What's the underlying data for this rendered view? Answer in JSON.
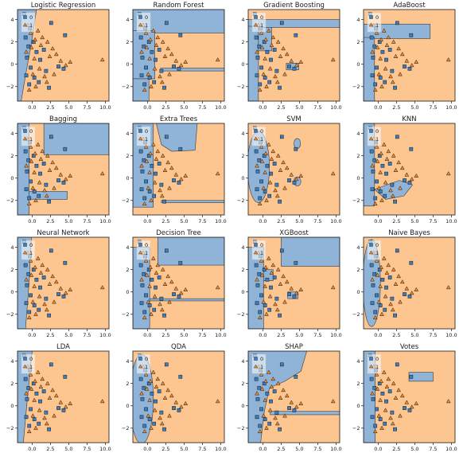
{
  "figure": {
    "colors": {
      "class_0": "#8fb4d8",
      "class_1": "#fdc590",
      "marker_0": "#3a7ebf",
      "marker_1": "#f28a2a"
    }
  },
  "chart_data": {
    "type": "scatter",
    "xlim": [
      -2,
      10.5
    ],
    "ylim": [
      -3.3,
      4.9
    ],
    "xticks": [
      0.0,
      2.5,
      5.0,
      7.5,
      10.0
    ],
    "xtick_labels": [
      "0.0",
      "2.5",
      "5.0",
      "7.5",
      "10.0"
    ],
    "yticks": [
      -2,
      0,
      2,
      4
    ],
    "ytick_labels": [
      "−2",
      "0",
      "2",
      "4"
    ],
    "legend": {
      "entries": [
        "0",
        "1"
      ],
      "placement": "top-left"
    },
    "series": [
      {
        "name": "0",
        "marker": "square",
        "points": [
          [
            -0.9,
            2.4
          ],
          [
            -0.5,
            1.6
          ],
          [
            -0.7,
            0.6
          ],
          [
            -0.2,
            -0.3
          ],
          [
            0.3,
            -1.2
          ],
          [
            -0.4,
            -1.8
          ],
          [
            1.1,
            0.4
          ],
          [
            1.9,
            -0.6
          ],
          [
            2.3,
            -2.1
          ],
          [
            3.6,
            -0.2
          ],
          [
            4.3,
            -0.4
          ],
          [
            4.5,
            2.6
          ],
          [
            2.6,
            3.7
          ],
          [
            -1.1,
            4.5
          ],
          [
            0.6,
            1.1
          ],
          [
            -0.8,
            -1.0
          ],
          [
            0.9,
            -1.6
          ],
          [
            1.6,
            1.3
          ],
          [
            -0.3,
            3.2
          ],
          [
            0.2,
            2.0
          ]
        ]
      },
      {
        "name": "1",
        "marker": "triangle",
        "points": [
          [
            -0.6,
            3.5
          ],
          [
            -0.2,
            2.8
          ],
          [
            0.4,
            2.2
          ],
          [
            0.8,
            3.0
          ],
          [
            1.4,
            2.4
          ],
          [
            2.1,
            2.0
          ],
          [
            2.8,
            1.4
          ],
          [
            3.3,
            0.9
          ],
          [
            3.9,
            0.3
          ],
          [
            4.6,
            -0.1
          ],
          [
            5.2,
            0.2
          ],
          [
            9.6,
            0.4
          ],
          [
            1.0,
            -0.4
          ],
          [
            0.1,
            -0.9
          ],
          [
            -0.4,
            -2.3
          ],
          [
            0.5,
            -2.0
          ],
          [
            1.7,
            -1.1
          ],
          [
            2.4,
            0.7
          ],
          [
            -0.8,
            1.1
          ],
          [
            1.2,
            1.7
          ],
          [
            3.0,
            -0.9
          ],
          [
            0.3,
            0.5
          ],
          [
            -0.1,
            1.5
          ],
          [
            2.0,
            -1.6
          ]
        ]
      }
    ],
    "panels": [
      {
        "title": "Logistic Regression"
      },
      {
        "title": "Random Forest"
      },
      {
        "title": "Gradient Boosting"
      },
      {
        "title": "AdaBoost"
      },
      {
        "title": "Bagging"
      },
      {
        "title": "Extra Trees"
      },
      {
        "title": "SVM"
      },
      {
        "title": "KNN"
      },
      {
        "title": "Neural Network"
      },
      {
        "title": "Decision Tree"
      },
      {
        "title": "XGBoost"
      },
      {
        "title": "Naive Bayes"
      },
      {
        "title": "LDA"
      },
      {
        "title": "QDA"
      },
      {
        "title": "SHAP"
      },
      {
        "title": "Votes"
      }
    ]
  }
}
